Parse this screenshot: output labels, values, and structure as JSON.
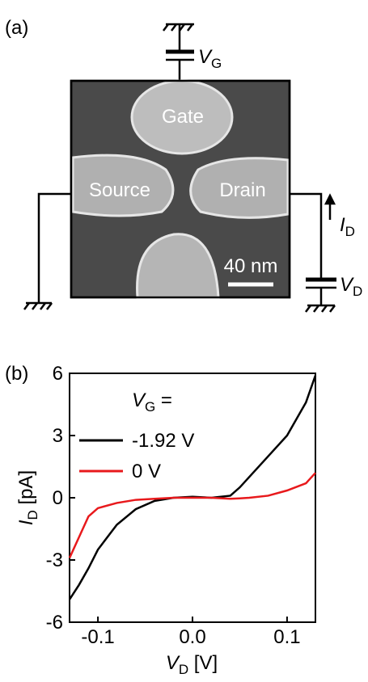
{
  "panel_a": {
    "label": "(a)",
    "gate_voltage": {
      "main": "V",
      "sub": "G"
    },
    "drain_voltage": {
      "main": "V",
      "sub": "D"
    },
    "drain_current": {
      "main": "I",
      "sub": "D"
    },
    "electrodes": {
      "gate": "Gate",
      "source": "Source",
      "drain": "Drain"
    },
    "scale_bar": "40 nm"
  },
  "chart_data": {
    "type": "line",
    "panel_label": "(b)",
    "xlabel": {
      "main": "V",
      "sub": "D",
      "rest": " [V]"
    },
    "ylabel": {
      "main": "I",
      "sub": "D",
      "rest": " [pA]"
    },
    "legend_title": {
      "main": "V",
      "sub": "G",
      "rest": " ="
    },
    "xlim": [
      -0.13,
      0.13
    ],
    "xticks": [
      -0.1,
      {
        "value": 0,
        "label": "0.0"
      },
      0.1
    ],
    "ylim": [
      -6,
      6
    ],
    "yticks": [
      -6,
      -3,
      0,
      3,
      6
    ],
    "x": [
      -0.13,
      -0.12,
      -0.11,
      -0.1,
      -0.08,
      -0.06,
      -0.04,
      -0.02,
      0,
      0.02,
      0.04,
      0.05,
      0.06,
      0.08,
      0.1,
      0.12,
      0.13
    ],
    "series": [
      {
        "name": "-1.92 V",
        "color": "#000000",
        "values": [
          -4.9,
          -4.2,
          -3.4,
          -2.5,
          -1.3,
          -0.55,
          -0.15,
          0,
          0.05,
          0,
          0.1,
          0.5,
          1.0,
          2.0,
          3.0,
          4.6,
          5.9
        ]
      },
      {
        "name": "0 V",
        "color": "#e8191c",
        "values": [
          -2.9,
          -1.9,
          -0.9,
          -0.5,
          -0.25,
          -0.1,
          -0.05,
          0,
          0,
          0,
          -0.05,
          -0.03,
          0,
          0.1,
          0.35,
          0.7,
          1.2
        ]
      }
    ]
  }
}
